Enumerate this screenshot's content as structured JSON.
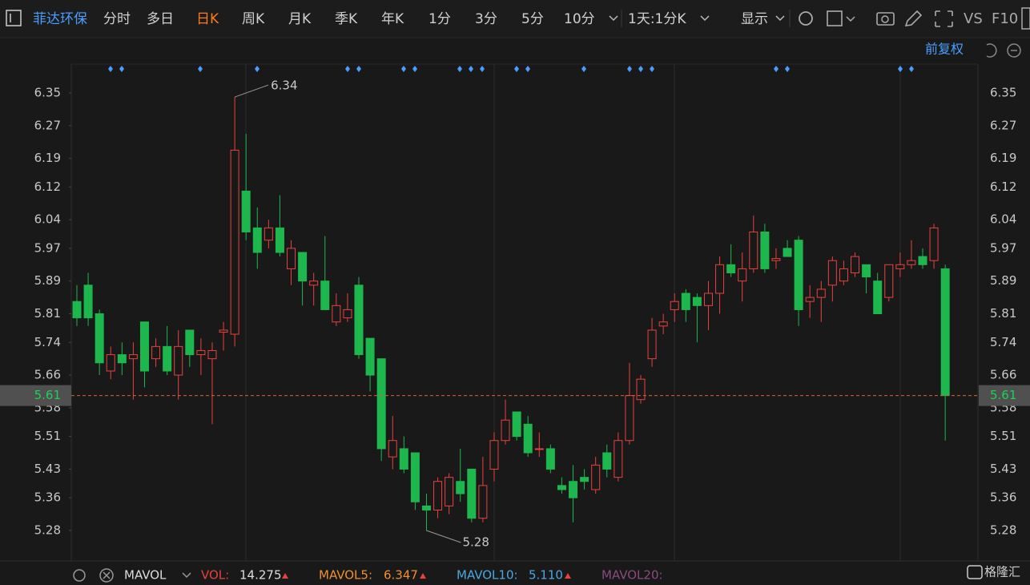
{
  "toolbar": {
    "stock": "菲达环保",
    "tabs": [
      "分时",
      "多日",
      "日K",
      "周K",
      "月K",
      "季K",
      "年K",
      "1分",
      "3分",
      "5分",
      "10分"
    ],
    "period": "1天:1分K",
    "display": "显示",
    "vs": "VS",
    "f10": "F10",
    "adjust": "前复权"
  },
  "indicator": {
    "name": "MAVOL",
    "vol_label": "VOL:",
    "vol": 14.275,
    "mavol5_label": "MAVOL5:",
    "mavol5": 6.347,
    "mavol10_label": "MAVOL10:",
    "mavol10": 5.11,
    "mavol10_text": "5.110",
    "mavol20_label": "MAVOL20:"
  },
  "logo": "格隆汇",
  "chart_data": {
    "type": "candlestick",
    "up_color": "#e8413e",
    "down_color": "#1db74e",
    "ylim": [
      5.2055,
      6.4205
    ],
    "yticks": [
      6.35,
      6.27,
      6.19,
      6.12,
      6.04,
      5.97,
      5.89,
      5.81,
      5.74,
      5.66,
      5.58,
      5.51,
      5.43,
      5.36,
      5.28
    ],
    "last_price": 5.61,
    "high_label": 6.34,
    "low_label": 5.28,
    "open": [
      5.84,
      5.88,
      5.81,
      5.67,
      5.71,
      5.7,
      5.79,
      5.7,
      5.73,
      5.66,
      5.77,
      5.71,
      5.7,
      5.765,
      5.76,
      6.11,
      6.02,
      5.99,
      6.02,
      5.92,
      5.96,
      5.88,
      5.89,
      5.79,
      5.8,
      5.88,
      5.75,
      5.7,
      5.46,
      5.48,
      5.47,
      5.34,
      5.33,
      5.34,
      5.4,
      5.43,
      5.31,
      5.43,
      5.5,
      5.57,
      5.54,
      5.48,
      5.48,
      5.39,
      5.4,
      5.41,
      5.38,
      5.47,
      5.41,
      5.5,
      5.6,
      5.7,
      5.78,
      5.82,
      5.86,
      5.85,
      5.83,
      5.86,
      5.93,
      5.89,
      5.92,
      6.01,
      5.94,
      5.97,
      5.99,
      5.84,
      5.85,
      5.88,
      5.89,
      5.91,
      5.93,
      5.89,
      5.85,
      5.92,
      5.93,
      5.95,
      5.94,
      5.92
    ],
    "high": [
      5.88,
      5.91,
      5.82,
      5.73,
      5.74,
      5.74,
      5.79,
      5.75,
      5.78,
      5.77,
      5.77,
      5.75,
      5.74,
      5.79,
      6.34,
      6.25,
      6.07,
      6.04,
      6.1,
      5.99,
      5.96,
      5.91,
      6.0,
      5.86,
      5.86,
      5.9,
      5.75,
      5.7,
      5.56,
      5.51,
      5.47,
      5.37,
      5.41,
      5.42,
      5.48,
      5.43,
      5.46,
      5.52,
      5.6,
      5.57,
      5.56,
      5.52,
      5.49,
      5.41,
      5.44,
      5.43,
      5.46,
      5.49,
      5.52,
      5.69,
      5.66,
      5.8,
      5.81,
      5.86,
      5.87,
      5.86,
      5.89,
      5.95,
      5.98,
      5.96,
      6.05,
      6.03,
      5.97,
      5.99,
      6.0,
      5.88,
      5.89,
      5.95,
      5.94,
      5.96,
      5.93,
      5.91,
      5.93,
      5.96,
      5.99,
      5.97,
      6.03,
      5.93
    ],
    "low": [
      5.78,
      5.78,
      5.66,
      5.65,
      5.66,
      5.6,
      5.63,
      5.68,
      5.66,
      5.6,
      5.68,
      5.66,
      5.54,
      5.72,
      5.73,
      5.99,
      5.92,
      5.97,
      5.95,
      5.88,
      5.83,
      5.83,
      5.82,
      5.78,
      5.79,
      5.7,
      5.62,
      5.45,
      5.43,
      5.42,
      5.33,
      5.28,
      5.31,
      5.32,
      5.35,
      5.3,
      5.3,
      5.4,
      5.49,
      5.5,
      5.46,
      5.46,
      5.42,
      5.37,
      5.3,
      5.38,
      5.37,
      5.41,
      5.4,
      5.49,
      5.59,
      5.68,
      5.76,
      5.79,
      5.79,
      5.74,
      5.77,
      5.81,
      5.9,
      5.84,
      5.91,
      5.91,
      5.92,
      5.95,
      5.78,
      5.8,
      5.79,
      5.84,
      5.88,
      5.9,
      5.86,
      5.81,
      5.84,
      5.9,
      5.92,
      5.92,
      5.92,
      5.5
    ],
    "close": [
      5.8,
      5.8,
      5.69,
      5.71,
      5.69,
      5.71,
      5.67,
      5.73,
      5.67,
      5.73,
      5.71,
      5.72,
      5.72,
      5.77,
      6.21,
      6.01,
      5.96,
      6.02,
      5.96,
      5.97,
      5.89,
      5.89,
      5.82,
      5.83,
      5.82,
      5.71,
      5.66,
      5.48,
      5.5,
      5.43,
      5.35,
      5.33,
      5.4,
      5.41,
      5.37,
      5.31,
      5.39,
      5.5,
      5.55,
      5.51,
      5.47,
      5.48,
      5.43,
      5.38,
      5.36,
      5.4,
      5.44,
      5.43,
      5.5,
      5.61,
      5.65,
      5.77,
      5.79,
      5.84,
      5.82,
      5.83,
      5.86,
      5.93,
      5.91,
      5.92,
      6.01,
      5.92,
      5.945,
      5.95,
      5.82,
      5.85,
      5.87,
      5.94,
      5.92,
      5.95,
      5.9,
      5.81,
      5.93,
      5.93,
      5.94,
      5.93,
      6.02,
      5.61
    ]
  }
}
